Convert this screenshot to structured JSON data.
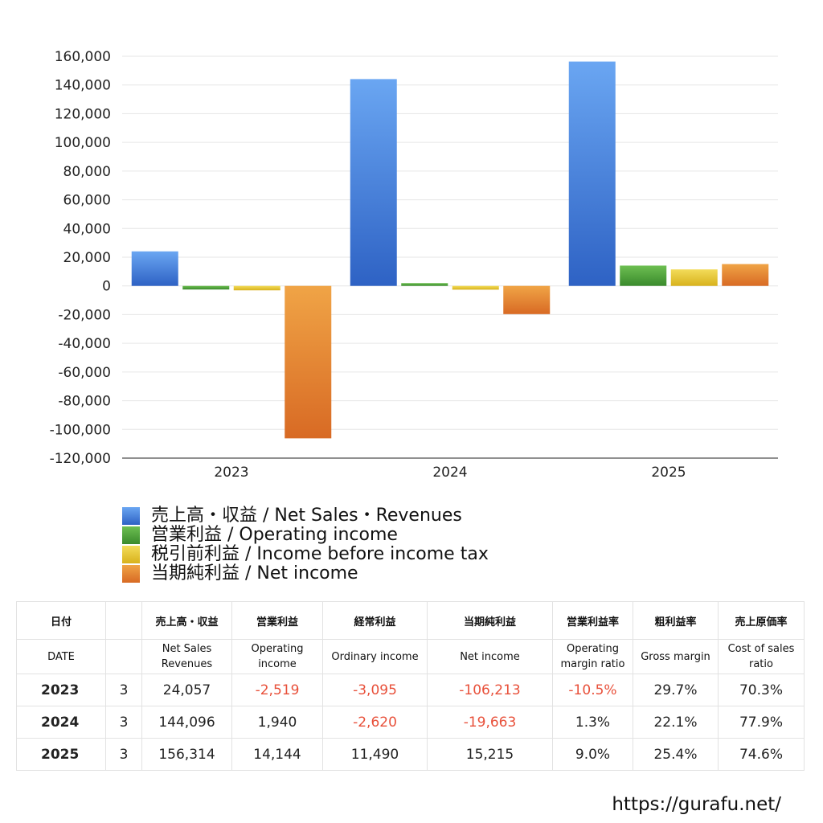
{
  "chart_data": {
    "type": "bar",
    "categories": [
      "2023",
      "2024",
      "2025"
    ],
    "series": [
      {
        "name": "売上高・収益 / Net Sales・Revenues",
        "values": [
          24057,
          144096,
          156314
        ],
        "color": "#3b78d8"
      },
      {
        "name": "営業利益 / Operating income",
        "values": [
          -2519,
          1940,
          14144
        ],
        "color": "#4a9c38"
      },
      {
        "name": "税引前利益 / Income before income tax",
        "values": [
          -3095,
          -2620,
          11490
        ],
        "color": "#e3c22a"
      },
      {
        "name": "当期純利益 / Net income",
        "values": [
          -106213,
          -19663,
          15215
        ],
        "color": "#e07c2c"
      }
    ],
    "ylim": [
      -120000,
      160000
    ],
    "yticks": [
      160000,
      140000,
      120000,
      100000,
      80000,
      60000,
      40000,
      20000,
      0,
      -20000,
      -40000,
      -60000,
      -80000,
      -100000,
      -120000
    ],
    "ytick_labels": [
      "160,000",
      "140,000",
      "120,000",
      "100,000",
      "80,000",
      "60,000",
      "40,000",
      "20,000",
      "0",
      "-20,000",
      "-40,000",
      "-60,000",
      "-80,000",
      "-100,000",
      "-120,000"
    ],
    "grid": true,
    "legend_position": "bottom-left"
  },
  "table": {
    "header_jp": [
      "日付",
      "",
      "売上高・収益",
      "営業利益",
      "経常利益",
      "当期純利益",
      "営業利益率",
      "粗利益率",
      "売上原価率"
    ],
    "header_en": [
      [
        "DATE"
      ],
      [
        ""
      ],
      [
        "Net Sales",
        "Revenues"
      ],
      [
        "Operating",
        "income"
      ],
      [
        "Ordinary income"
      ],
      [
        "Net income"
      ],
      [
        "Operating",
        "margin ratio"
      ],
      [
        "Gross margin"
      ],
      [
        "Cost of sales",
        "ratio"
      ]
    ],
    "rows": [
      {
        "year": "2023",
        "month": "3",
        "cells": [
          {
            "v": "24,057",
            "neg": false
          },
          {
            "v": "-2,519",
            "neg": true
          },
          {
            "v": "-3,095",
            "neg": true
          },
          {
            "v": "-106,213",
            "neg": true
          },
          {
            "v": "-10.5%",
            "neg": true
          },
          {
            "v": "29.7%",
            "neg": false
          },
          {
            "v": "70.3%",
            "neg": false
          }
        ]
      },
      {
        "year": "2024",
        "month": "3",
        "cells": [
          {
            "v": "144,096",
            "neg": false
          },
          {
            "v": "1,940",
            "neg": false
          },
          {
            "v": "-2,620",
            "neg": true
          },
          {
            "v": "-19,663",
            "neg": true
          },
          {
            "v": "1.3%",
            "neg": false
          },
          {
            "v": "22.1%",
            "neg": false
          },
          {
            "v": "77.9%",
            "neg": false
          }
        ]
      },
      {
        "year": "2025",
        "month": "3",
        "cells": [
          {
            "v": "156,314",
            "neg": false
          },
          {
            "v": "14,144",
            "neg": false
          },
          {
            "v": "11,490",
            "neg": false
          },
          {
            "v": "15,215",
            "neg": false
          },
          {
            "v": "9.0%",
            "neg": false
          },
          {
            "v": "25.4%",
            "neg": false
          },
          {
            "v": "74.6%",
            "neg": false
          }
        ]
      }
    ]
  },
  "footer": {
    "url": "https://gurafu.net/"
  }
}
